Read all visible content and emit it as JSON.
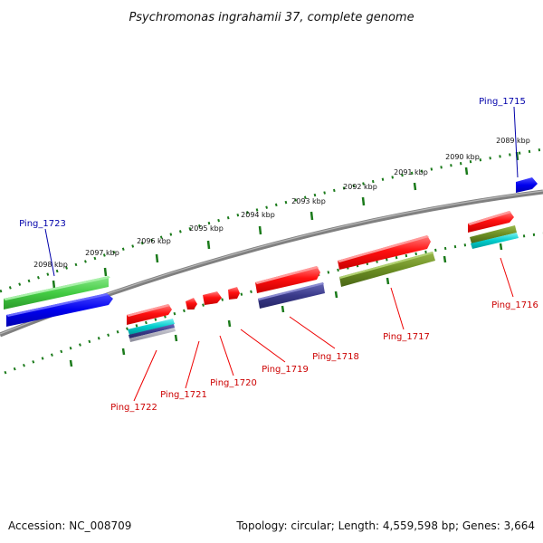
{
  "title": "Psychromonas ingrahamii 37, complete genome",
  "ticks": [
    {
      "label": "2089 kbp"
    },
    {
      "label": "2090 kbp"
    },
    {
      "label": "2091 kbp"
    },
    {
      "label": "2092 kbp"
    },
    {
      "label": "2093 kbp"
    },
    {
      "label": "2094 kbp"
    },
    {
      "label": "2095 kbp"
    },
    {
      "label": "2096 kbp"
    },
    {
      "label": "2097 kbp"
    },
    {
      "label": "2098 kbp"
    }
  ],
  "gene_labels": [
    {
      "text": "Ping_1715",
      "color": "#0000aa"
    },
    {
      "text": "Ping_1716",
      "color": "#cc0000"
    },
    {
      "text": "Ping_1717",
      "color": "#cc0000"
    },
    {
      "text": "Ping_1718",
      "color": "#cc0000"
    },
    {
      "text": "Ping_1719",
      "color": "#cc0000"
    },
    {
      "text": "Ping_1720",
      "color": "#cc0000"
    },
    {
      "text": "Ping_1721",
      "color": "#cc0000"
    },
    {
      "text": "Ping_1722",
      "color": "#cc0000"
    },
    {
      "text": "Ping_1723",
      "color": "#0000aa"
    }
  ],
  "footer": {
    "accession": "Accession: NC_008709",
    "summary": "Topology: circular; Length: 4,559,598 bp; Genes: 3,664"
  },
  "colors": {
    "backbone": "#808080",
    "tick": "#1a7a1a",
    "forward_gene": "#ee0000",
    "reverse_gene_blue": "#0000ee",
    "reverse_gene_green": "#44cc44",
    "feature_cyan": "#00cccc",
    "feature_olive": "#6b8e23",
    "feature_navy": "#3a3a8a",
    "connector": "#ee0000"
  }
}
